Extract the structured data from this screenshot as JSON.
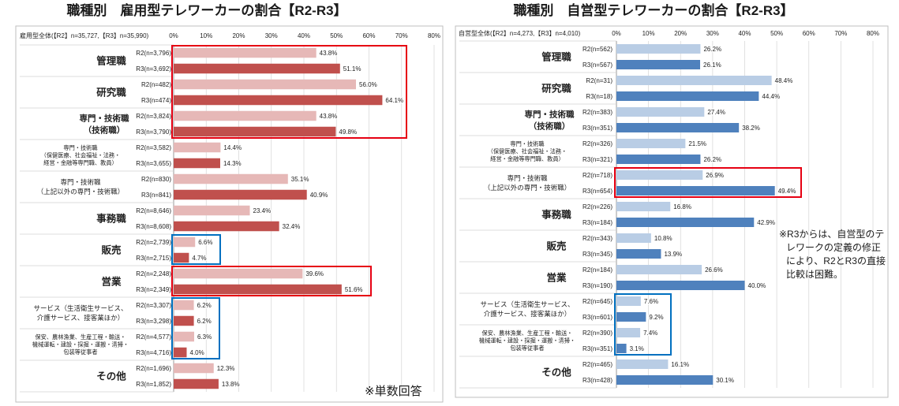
{
  "chart_data": [
    {
      "type": "bar",
      "orientation": "horizontal",
      "title": "職種別　雇用型テレワーカーの割合【R2-R3】",
      "subtitle": "雇用型全体(【R2】n=35,727,【R3】n=35,990)",
      "xlim": [
        0,
        80
      ],
      "xtick_values": [
        0,
        10,
        20,
        30,
        40,
        50,
        60,
        70,
        80
      ],
      "xtick_labels": [
        "0%",
        "10%",
        "20%",
        "30%",
        "40%",
        "50%",
        "60%",
        "70%",
        "80%"
      ],
      "grid": true,
      "categories": [
        [
          "管理職"
        ],
        [
          "研究職"
        ],
        [
          "専門・技術職",
          "（技術職）"
        ],
        [
          "専門・技術職",
          "（保健医療、社会福祉・法務・",
          "経営・金融等専門職、教員）"
        ],
        [
          "専門・技術職",
          "（上記以外の専門・技術職）"
        ],
        [
          "事務職"
        ],
        [
          "販売"
        ],
        [
          "営業"
        ],
        [
          "サービス（生活衛生サービス、",
          "介護サービス、接客業ほか）"
        ],
        [
          "保安、農林漁業、生産工程・輸送・",
          "機械運転・建設・採掘・運搬・清掃・",
          "包装等従事者"
        ],
        [
          "その他"
        ]
      ],
      "series": [
        {
          "color": "#e6b8b7",
          "bar_labels": [
            "R2(n=3,796)",
            "R2(n=482)",
            "R2(n=3,824)",
            "R2(n=3,582)",
            "R2(n=830)",
            "R2(n=8,646)",
            "R2(n=2,739)",
            "R2(n=2,248)",
            "R2(n=3,307)",
            "R2(n=4,577)",
            "R2(n=1,696)"
          ],
          "values": [
            43.8,
            56.0,
            43.8,
            14.4,
            35.1,
            23.4,
            6.6,
            39.6,
            6.2,
            6.3,
            12.3
          ],
          "value_labels": [
            "43.8%",
            "56.0%",
            "43.8%",
            "14.4%",
            "35.1%",
            "23.4%",
            "6.6%",
            "39.6%",
            "6.2%",
            "6.3%",
            "12.3%"
          ]
        },
        {
          "color": "#c0504d",
          "bar_labels": [
            "R3(n=3,692)",
            "R3(n=474)",
            "R3(n=3,790)",
            "R3(n=3,655)",
            "R3(n=841)",
            "R3(n=8,608)",
            "R3(n=2,715)",
            "R3(n=2,349)",
            "R3(n=3,298)",
            "R3(n=4,716)",
            "R3(n=1,852)"
          ],
          "values": [
            51.1,
            64.1,
            49.8,
            14.3,
            40.9,
            32.4,
            4.7,
            51.6,
            6.2,
            4.0,
            13.8
          ],
          "value_labels": [
            "51.1%",
            "64.1%",
            "49.8%",
            "14.3%",
            "40.9%",
            "32.4%",
            "4.7%",
            "51.6%",
            "6.2%",
            "4.0%",
            "13.8%"
          ]
        }
      ],
      "highlights": [
        {
          "color": "#e60012",
          "categories": [
            0,
            2
          ]
        },
        {
          "color": "#e60012",
          "categories": [
            7,
            7
          ]
        },
        {
          "color": "#0070c0",
          "categories": [
            6,
            6
          ]
        },
        {
          "color": "#0070c0",
          "categories": [
            8,
            9
          ]
        }
      ],
      "footnote": "※単数回答"
    },
    {
      "type": "bar",
      "orientation": "horizontal",
      "title": "職種別　自営型テレワーカーの割合【R2-R3】",
      "subtitle": "自営型全体(【R2】n=4,273,【R3】n=4,010)",
      "xlim": [
        0,
        80
      ],
      "xtick_values": [
        0,
        10,
        20,
        30,
        40,
        50,
        60,
        70,
        80
      ],
      "xtick_labels": [
        "0%",
        "10%",
        "20%",
        "30%",
        "40%",
        "50%",
        "60%",
        "70%",
        "80%"
      ],
      "grid": true,
      "categories": [
        [
          "管理職"
        ],
        [
          "研究職"
        ],
        [
          "専門・技術職",
          "（技術職）"
        ],
        [
          "専門・技術職",
          "（保健医療、社会福祉・法務・",
          "経営・金融等専門職、教員）"
        ],
        [
          "専門・技術職",
          "（上記以外の専門・技術職）"
        ],
        [
          "事務職"
        ],
        [
          "販売"
        ],
        [
          "営業"
        ],
        [
          "サービス（生活衛生サービス、",
          "介護サービス、接客業ほか）"
        ],
        [
          "保安、農林漁業、生産工程・輸送・",
          "機械運転・建設・採掘・運搬・清掃・",
          "包装等従事者"
        ],
        [
          "その他"
        ]
      ],
      "series": [
        {
          "color": "#b9cde5",
          "bar_labels": [
            "R2(n=562)",
            "R2(n=31)",
            "R2(n=383)",
            "R2(n=326)",
            "R2(n=718)",
            "R2(n=226)",
            "R2(n=343)",
            "R2(n=184)",
            "R2(n=645)",
            "R2(n=390)",
            "R2(n=465)"
          ],
          "values": [
            26.2,
            48.4,
            27.4,
            21.5,
            26.9,
            16.8,
            10.8,
            26.6,
            7.6,
            7.4,
            16.1
          ],
          "value_labels": [
            "26.2%",
            "48.4%",
            "27.4%",
            "21.5%",
            "26.9%",
            "16.8%",
            "10.8%",
            "26.6%",
            "7.6%",
            "7.4%",
            "16.1%"
          ]
        },
        {
          "color": "#4f81bd",
          "bar_labels": [
            "R3(n=567)",
            "R3(n=18)",
            "R3(n=351)",
            "R3(n=321)",
            "R3(n=654)",
            "R3(n=184)",
            "R3(n=345)",
            "R3(n=190)",
            "R3(n=601)",
            "R3(n=351)",
            "R3(n=428)"
          ],
          "values": [
            26.1,
            44.4,
            38.2,
            26.2,
            49.4,
            42.9,
            13.9,
            40.0,
            9.2,
            3.1,
            30.1
          ],
          "value_labels": [
            "26.1%",
            "44.4%",
            "38.2%",
            "26.2%",
            "49.4%",
            "42.9%",
            "13.9%",
            "40.0%",
            "9.2%",
            "3.1%",
            "30.1%"
          ]
        }
      ],
      "highlights": [
        {
          "color": "#e60012",
          "categories": [
            4,
            4
          ]
        },
        {
          "color": "#0070c0",
          "categories": [
            8,
            9
          ]
        }
      ],
      "note_lines": [
        "※R3からは、自営型のテ",
        "レワークの定義の修正",
        "により、R2とR3の直接",
        "比較は困難。"
      ]
    }
  ]
}
